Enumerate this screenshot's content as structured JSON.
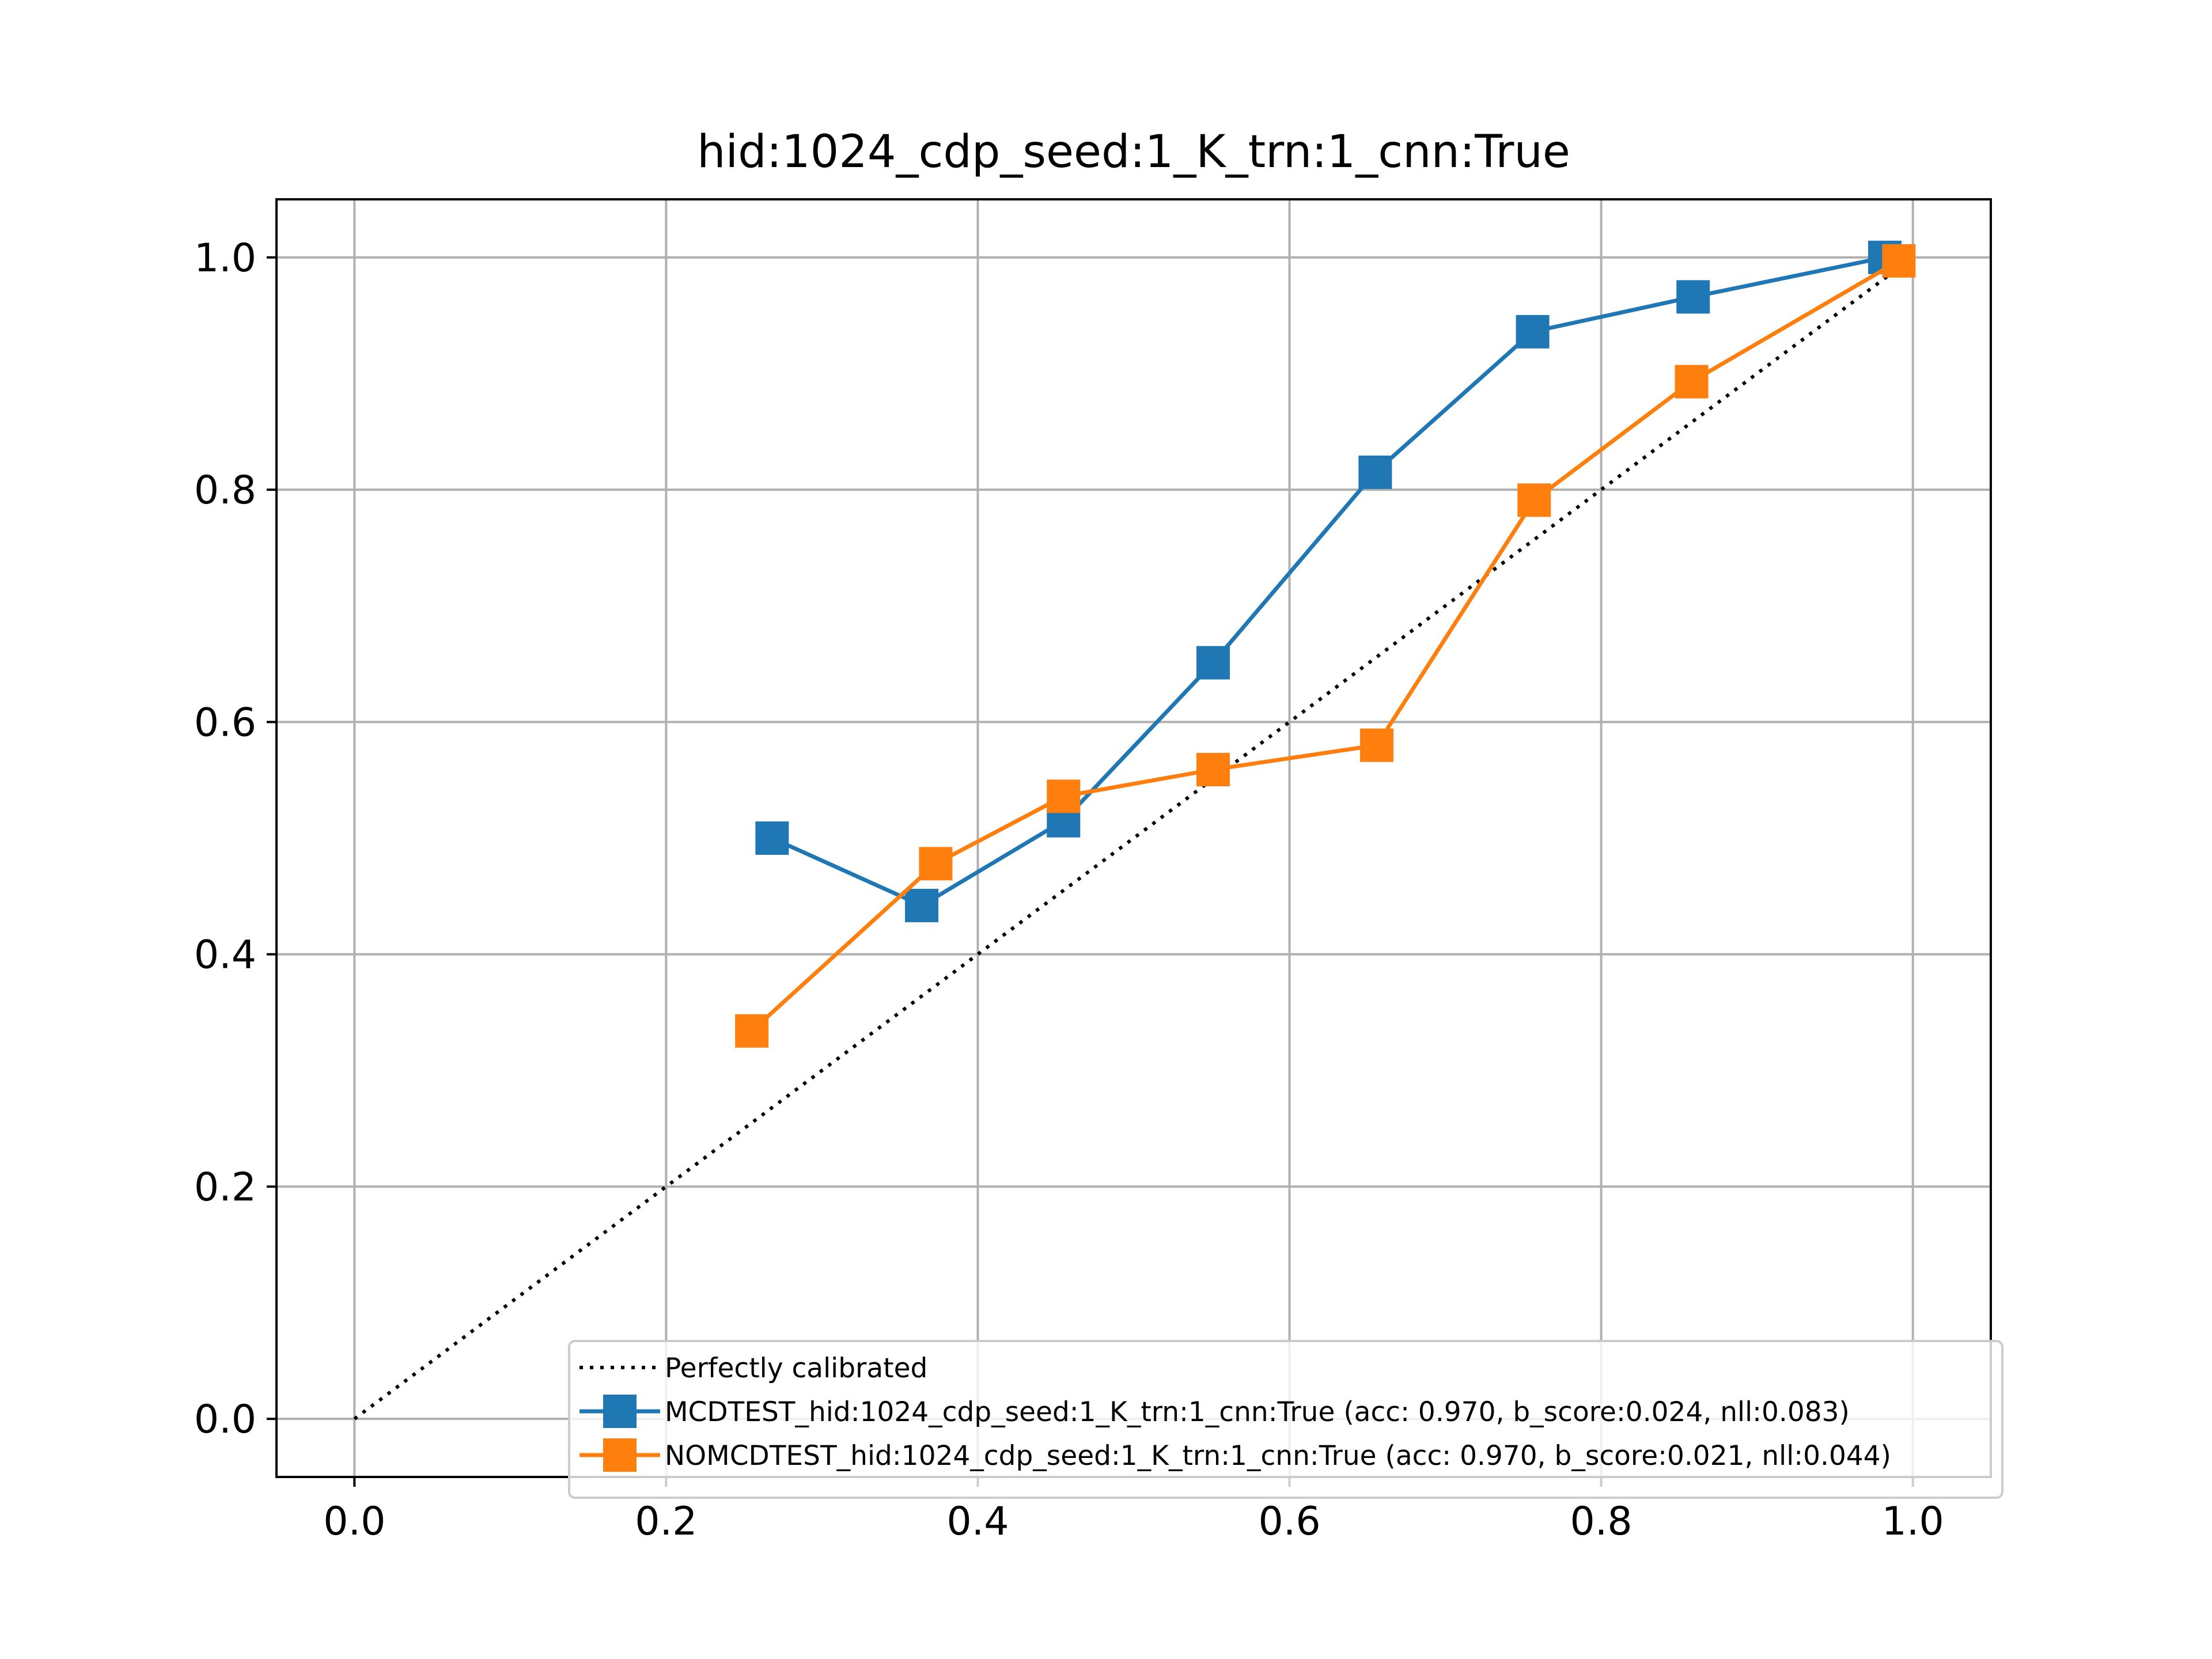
{
  "chart_data": {
    "type": "line",
    "title": "hid:1024_cdp_seed:1_K_trn:1_cnn:True",
    "xlabel": "",
    "ylabel": "",
    "xlim": [
      -0.05,
      1.05
    ],
    "ylim": [
      -0.05,
      1.05
    ],
    "xticks": [
      "0.0",
      "0.2",
      "0.4",
      "0.6",
      "0.8",
      "1.0"
    ],
    "yticks": [
      "0.0",
      "0.2",
      "0.4",
      "0.6",
      "0.8",
      "1.0"
    ],
    "grid": true,
    "legend_position": "lower-right",
    "series": [
      {
        "name": "Perfectly calibrated",
        "style": "dotted",
        "color": "#000000",
        "marker": "none",
        "x": [
          0.0,
          1.0
        ],
        "y": [
          0.0,
          1.0
        ]
      },
      {
        "name": "MCDTEST_hid:1024_cdp_seed:1_K_trn:1_cnn:True (acc: 0.970, b_score:0.024, nll:0.083)",
        "style": "solid",
        "color": "#1f77b4",
        "marker": "square",
        "x": [
          0.268,
          0.364,
          0.455,
          0.551,
          0.655,
          0.756,
          0.859,
          0.982
        ],
        "y": [
          0.5,
          0.442,
          0.515,
          0.651,
          0.815,
          0.936,
          0.966,
          1.0
        ]
      },
      {
        "name": "NOMCDTEST_hid:1024_cdp_seed:1_K_trn:1_cnn:True (acc: 0.970, b_score:0.021, nll:0.044)",
        "style": "solid",
        "color": "#ff7f0e",
        "marker": "square",
        "x": [
          0.255,
          0.373,
          0.455,
          0.551,
          0.656,
          0.757,
          0.858,
          0.991
        ],
        "y": [
          0.334,
          0.478,
          0.536,
          0.559,
          0.58,
          0.791,
          0.893,
          0.997
        ]
      }
    ]
  }
}
